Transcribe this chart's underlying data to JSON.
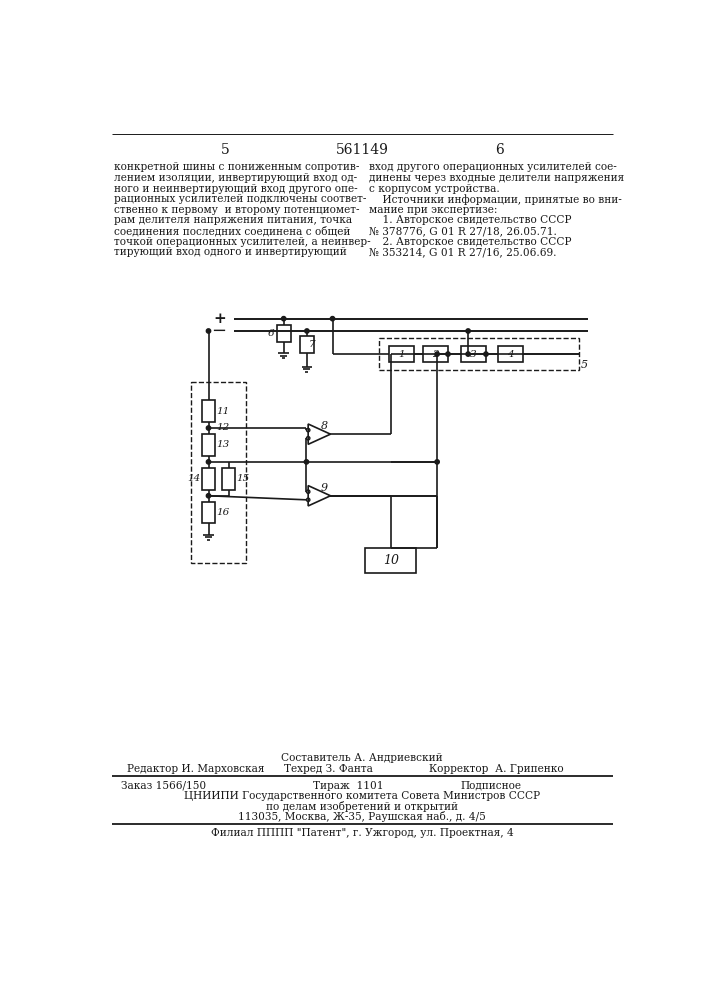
{
  "page_number_left": "5",
  "page_number_center": "561149",
  "page_number_right": "6",
  "text_left": "конкретной шины с пониженным сопротив-\nлением изоляции, инвертирующий вход од-\nного и неинвертирующий вход другого опе-\nрационных усилителей подключены соответ-\nственно к первому  и второму потенциомет-\nрам делителя напряжения питания, точка\nсоединения последних соединена с общей\nточкой операционных усилителей, а неинвер-\nтирующий вход одного и инвертирующий",
  "text_right": "вход другого операционных усилителей сое-\nдинены через входные делители напряжения\nс корпусом устройства.\n    Источники информации, принятые во вни-\nмание при экспертизе:\n    1. Авторское свидетельство СССР\n№ 378776, G 01 R 27/18, 26.05.71.\n    2. Авторское свидетельство СССР\n№ 353214, G 01 R 27/16, 25.06.69.",
  "footer_composer": "Составитель А. Андриевский",
  "footer_editor": "Редактор И. Марховская",
  "footer_techred": "Техред З. Фанта",
  "footer_corrector": "Корректор  А. Грипенко",
  "footer_order": "Заказ 1566/150",
  "footer_tirazh": "Тираж  1101",
  "footer_podpisnoe": "Подписное",
  "footer_tsniipi": "ЦНИИПИ Государственного комитета Совета Министров СССР",
  "footer_po_delam": "по делам изобретений и открытий",
  "footer_address": "113035, Москва, Ж-35, Раушская наб., д. 4/5",
  "footer_filial": "Филиал ПППП \"Патент\", г. Ужгород, ул. Проектная, 4",
  "bg_color": "#ffffff",
  "text_color": "#1a1a1a",
  "line_color": "#1a1a1a"
}
